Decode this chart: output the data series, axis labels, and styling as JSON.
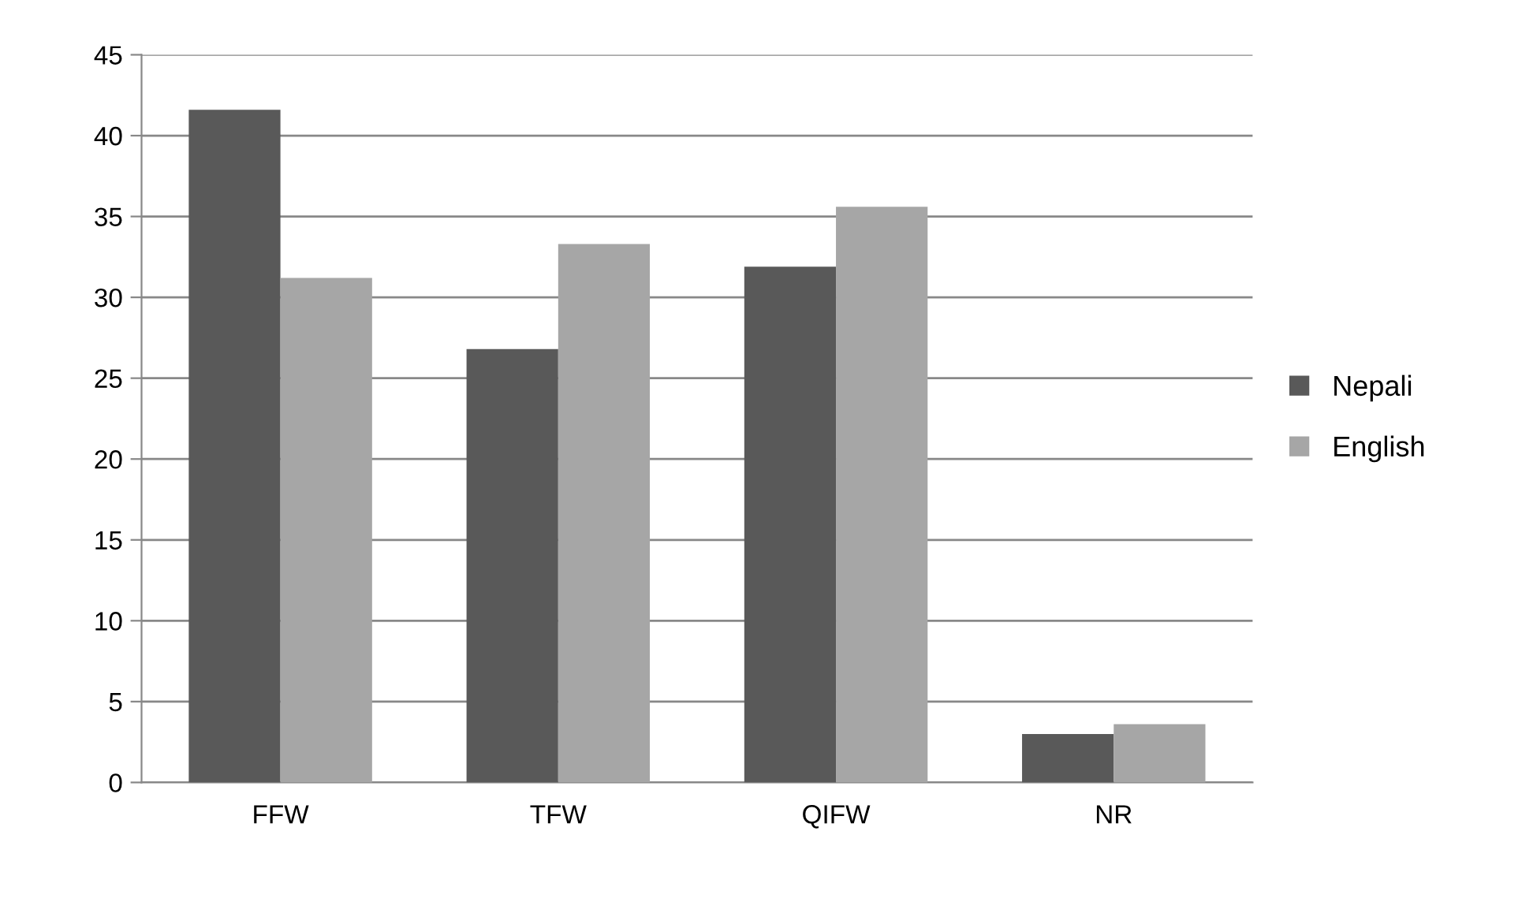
{
  "chart_data": {
    "type": "bar",
    "categories": [
      "FFW",
      "TFW",
      "QIFW",
      "NR"
    ],
    "series": [
      {
        "name": "Nepali",
        "color": "#595959",
        "values": [
          41.6,
          26.8,
          31.9,
          3.0
        ]
      },
      {
        "name": "English",
        "color": "#a6a6a6",
        "values": [
          31.2,
          33.3,
          35.6,
          3.6
        ]
      }
    ],
    "ylim": [
      0,
      45
    ],
    "yticks": [
      0,
      5,
      10,
      15,
      20,
      25,
      30,
      35,
      40,
      45
    ],
    "grid": "y",
    "legend": "right"
  }
}
